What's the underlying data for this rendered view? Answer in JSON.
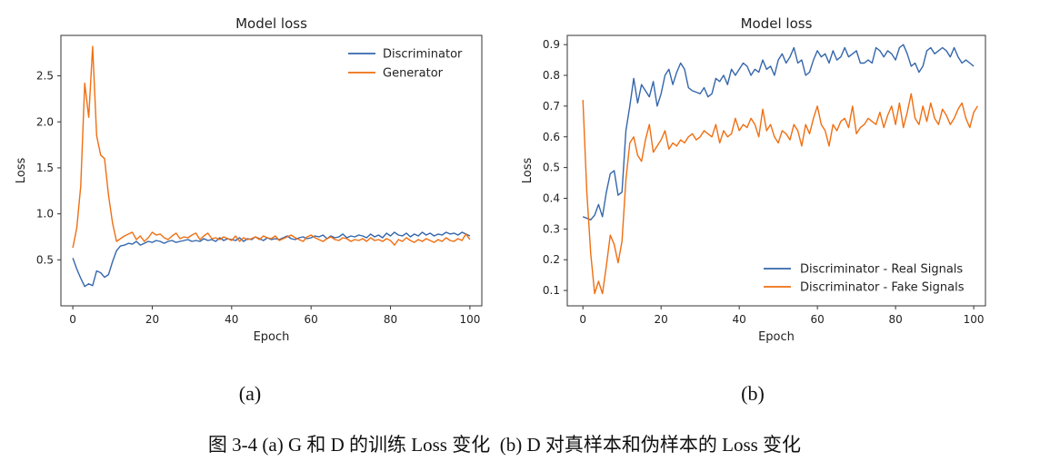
{
  "panel_labels": [
    "(a)",
    "(b)"
  ],
  "caption": "图 3-4 (a) G 和 D 的训练 Loss 变化  (b) D 对真样本和伪样本的 Loss 变化",
  "colors": {
    "blue": "#3466ac",
    "orange": "#ef6f12"
  },
  "chart_data": [
    {
      "type": "line",
      "title": "Model loss",
      "xlabel": "Epoch",
      "ylabel": "Loss",
      "xlim": [
        -3,
        103
      ],
      "ylim": [
        0.0,
        2.94
      ],
      "xticks": [
        0,
        20,
        40,
        60,
        80,
        100
      ],
      "yticks": [
        0.5,
        1.0,
        1.5,
        2.0,
        2.5
      ],
      "ytick_labels": [
        "0.5",
        "1.0",
        "1.5",
        "2.0",
        "2.5"
      ],
      "legend_position": "top-right",
      "series": [
        {
          "name": "Discriminator",
          "color": "#3466ac",
          "values": [
            0.52,
            0.4,
            0.3,
            0.21,
            0.24,
            0.22,
            0.38,
            0.36,
            0.31,
            0.34,
            0.48,
            0.6,
            0.65,
            0.66,
            0.68,
            0.67,
            0.7,
            0.66,
            0.68,
            0.7,
            0.69,
            0.71,
            0.7,
            0.68,
            0.7,
            0.71,
            0.69,
            0.7,
            0.71,
            0.72,
            0.7,
            0.71,
            0.7,
            0.73,
            0.71,
            0.72,
            0.7,
            0.74,
            0.71,
            0.73,
            0.72,
            0.71,
            0.74,
            0.7,
            0.73,
            0.72,
            0.75,
            0.73,
            0.71,
            0.74,
            0.72,
            0.73,
            0.72,
            0.74,
            0.76,
            0.73,
            0.72,
            0.74,
            0.75,
            0.73,
            0.74,
            0.76,
            0.75,
            0.77,
            0.73,
            0.76,
            0.74,
            0.75,
            0.78,
            0.74,
            0.76,
            0.75,
            0.77,
            0.76,
            0.74,
            0.78,
            0.75,
            0.77,
            0.74,
            0.79,
            0.76,
            0.8,
            0.77,
            0.76,
            0.79,
            0.75,
            0.78,
            0.76,
            0.8,
            0.77,
            0.79,
            0.76,
            0.78,
            0.77,
            0.8,
            0.78,
            0.79,
            0.77,
            0.8,
            0.78,
            0.76
          ]
        },
        {
          "name": "Generator",
          "color": "#ef6f12",
          "values": [
            0.63,
            0.85,
            1.3,
            2.42,
            2.05,
            2.82,
            1.85,
            1.64,
            1.6,
            1.2,
            0.9,
            0.7,
            0.73,
            0.76,
            0.78,
            0.8,
            0.72,
            0.76,
            0.7,
            0.74,
            0.8,
            0.77,
            0.78,
            0.74,
            0.72,
            0.76,
            0.79,
            0.73,
            0.75,
            0.74,
            0.77,
            0.79,
            0.72,
            0.76,
            0.79,
            0.73,
            0.74,
            0.72,
            0.75,
            0.73,
            0.71,
            0.76,
            0.7,
            0.74,
            0.72,
            0.73,
            0.75,
            0.72,
            0.76,
            0.74,
            0.73,
            0.76,
            0.71,
            0.73,
            0.75,
            0.77,
            0.74,
            0.72,
            0.7,
            0.75,
            0.77,
            0.74,
            0.72,
            0.7,
            0.73,
            0.75,
            0.72,
            0.71,
            0.74,
            0.73,
            0.7,
            0.72,
            0.71,
            0.73,
            0.7,
            0.74,
            0.71,
            0.72,
            0.7,
            0.73,
            0.71,
            0.66,
            0.72,
            0.7,
            0.74,
            0.71,
            0.69,
            0.72,
            0.7,
            0.73,
            0.71,
            0.69,
            0.72,
            0.7,
            0.74,
            0.71,
            0.7,
            0.73,
            0.71,
            0.78,
            0.72
          ]
        }
      ]
    },
    {
      "type": "line",
      "title": "Model loss",
      "xlabel": "Epoch",
      "ylabel": "Loss",
      "xlim": [
        -4,
        103
      ],
      "ylim": [
        0.05,
        0.93
      ],
      "xticks": [
        0,
        20,
        40,
        60,
        80,
        100
      ],
      "yticks": [
        0.1,
        0.2,
        0.3,
        0.4,
        0.5,
        0.6,
        0.7,
        0.8,
        0.9
      ],
      "ytick_labels": [
        "0.1",
        "0.2",
        "0.3",
        "0.4",
        "0.5",
        "0.6",
        "0.7",
        "0.8",
        "0.9"
      ],
      "legend_position": "bottom-right",
      "series": [
        {
          "name": "Discriminator - Real Signals",
          "color": "#3466ac",
          "values": [
            0.34,
            0.335,
            0.33,
            0.345,
            0.38,
            0.34,
            0.42,
            0.48,
            0.49,
            0.41,
            0.42,
            0.62,
            0.7,
            0.79,
            0.71,
            0.77,
            0.75,
            0.73,
            0.78,
            0.7,
            0.74,
            0.8,
            0.82,
            0.77,
            0.81,
            0.84,
            0.82,
            0.76,
            0.75,
            0.745,
            0.74,
            0.76,
            0.73,
            0.74,
            0.79,
            0.78,
            0.8,
            0.77,
            0.82,
            0.8,
            0.82,
            0.84,
            0.83,
            0.8,
            0.82,
            0.81,
            0.85,
            0.82,
            0.83,
            0.8,
            0.85,
            0.87,
            0.84,
            0.86,
            0.89,
            0.84,
            0.85,
            0.8,
            0.81,
            0.85,
            0.88,
            0.86,
            0.87,
            0.84,
            0.88,
            0.85,
            0.86,
            0.89,
            0.86,
            0.87,
            0.88,
            0.84,
            0.84,
            0.85,
            0.84,
            0.89,
            0.88,
            0.86,
            0.88,
            0.87,
            0.85,
            0.89,
            0.9,
            0.87,
            0.83,
            0.84,
            0.81,
            0.83,
            0.88,
            0.89,
            0.87,
            0.88,
            0.89,
            0.88,
            0.86,
            0.89,
            0.86,
            0.84,
            0.85,
            0.84,
            0.83
          ]
        },
        {
          "name": "Discriminator - Fake Signals",
          "color": "#ef6f12",
          "values": [
            0.72,
            0.42,
            0.22,
            0.09,
            0.13,
            0.09,
            0.18,
            0.28,
            0.25,
            0.19,
            0.26,
            0.46,
            0.58,
            0.6,
            0.54,
            0.52,
            0.59,
            0.64,
            0.55,
            0.57,
            0.59,
            0.62,
            0.56,
            0.58,
            0.57,
            0.59,
            0.58,
            0.6,
            0.61,
            0.59,
            0.6,
            0.62,
            0.61,
            0.6,
            0.64,
            0.58,
            0.62,
            0.6,
            0.61,
            0.66,
            0.62,
            0.64,
            0.63,
            0.66,
            0.64,
            0.6,
            0.69,
            0.62,
            0.64,
            0.6,
            0.58,
            0.62,
            0.61,
            0.59,
            0.64,
            0.62,
            0.57,
            0.64,
            0.61,
            0.66,
            0.7,
            0.64,
            0.62,
            0.57,
            0.64,
            0.62,
            0.65,
            0.66,
            0.63,
            0.7,
            0.61,
            0.63,
            0.64,
            0.66,
            0.65,
            0.64,
            0.68,
            0.63,
            0.67,
            0.7,
            0.64,
            0.71,
            0.63,
            0.68,
            0.74,
            0.66,
            0.64,
            0.7,
            0.65,
            0.71,
            0.66,
            0.64,
            0.69,
            0.67,
            0.64,
            0.66,
            0.69,
            0.71,
            0.66,
            0.63,
            0.68,
            0.7
          ]
        }
      ]
    }
  ]
}
